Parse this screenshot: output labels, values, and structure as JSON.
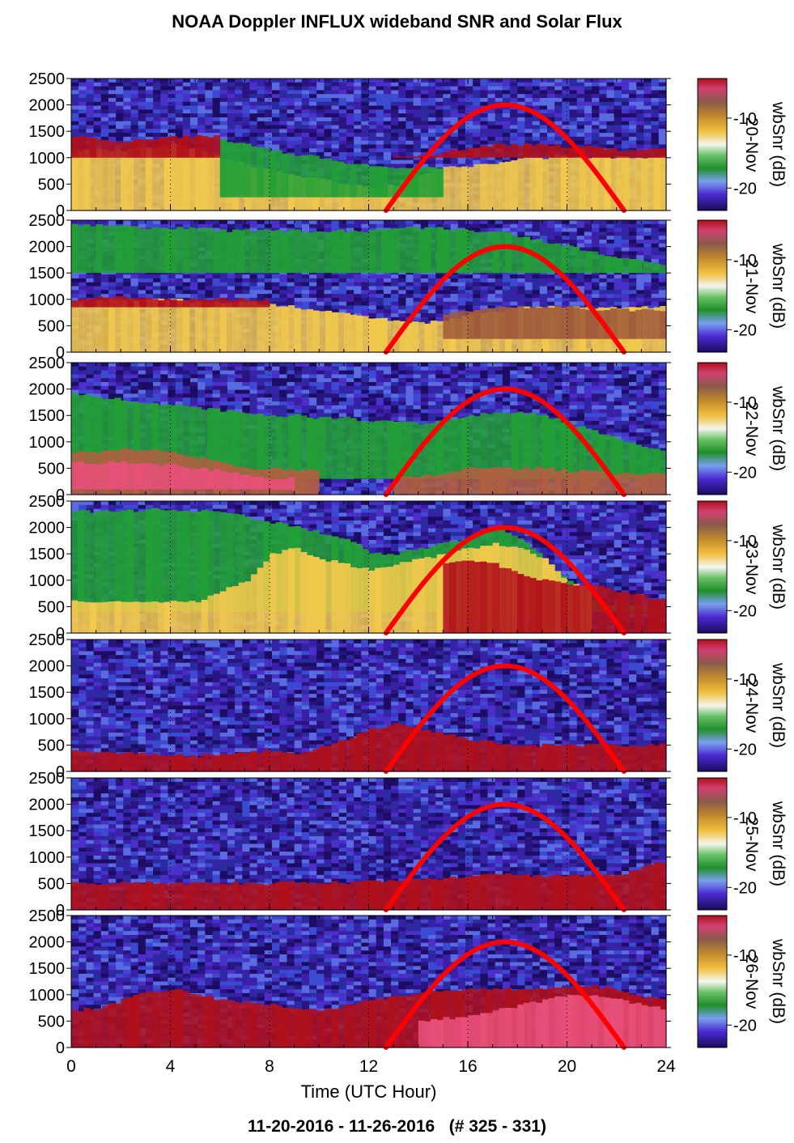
{
  "header": {
    "title": "NOAA Doppler INFLUX wideband SNR and Solar Flux"
  },
  "footer": {
    "range": "11-20-2016 - 11-26-2016   (# 325 - 331)"
  },
  "chart_data": {
    "type": "heatmap",
    "title": "NOAA Doppler INFLUX wideband SNR and Solar Flux",
    "xlabel": "Time (UTC Hour)",
    "ylabel": "",
    "xlim": [
      0,
      24
    ],
    "ylim": [
      0,
      2500
    ],
    "x_ticks": [
      "0",
      "4",
      "8",
      "12",
      "16",
      "20",
      "24"
    ],
    "y_ticks": [
      "0",
      "500",
      "1000",
      "1500",
      "2000",
      "2500"
    ],
    "colorbar": {
      "label": "wbSnr (dB)",
      "ticks": [
        "10",
        "20"
      ]
    },
    "solar_flux_curve": {
      "color": "#ff0000",
      "sunrise_hour": 12.7,
      "sunset_hour": 22.3,
      "peak_hour": 17.5,
      "peak_altitude": 2000
    },
    "panels": [
      {
        "day_label": "20-Nov",
        "layers": [
          {
            "color": "#f2c94c",
            "top": [
              1100,
              1150,
              1150,
              1180,
              1250,
              1150,
              1000,
              850,
              750,
              650,
              600,
              500,
              450,
              500,
              700,
              800,
              850,
              900,
              1000,
              1000,
              1050,
              1000,
              1000,
              1000,
              1050
            ],
            "base": 0
          },
          {
            "color": "#22a035",
            "top": [
              0,
              0,
              0,
              0,
              0,
              0,
              1350,
              1250,
              1150,
              1050,
              1000,
              900,
              850,
              800,
              800,
              0,
              0,
              0,
              0,
              0,
              0,
              0,
              0,
              0,
              0
            ],
            "base": 250
          },
          {
            "color": "#b0101a",
            "top": [
              1400,
              1350,
              1300,
              1350,
              1400,
              1400,
              0,
              0,
              0,
              0,
              0,
              0,
              0,
              1050,
              1050,
              1100,
              1200,
              1250,
              1250,
              1250,
              1200,
              1200,
              1150,
              1150,
              1150
            ],
            "base": 1000
          }
        ]
      },
      {
        "day_label": "21-Nov",
        "layers": [
          {
            "color": "#22a035",
            "top": [
              2400,
              2400,
              2400,
              2350,
              2350,
              2350,
              2300,
              2300,
              2300,
              2300,
              2300,
              2300,
              2300,
              2350,
              2350,
              2350,
              2300,
              2300,
              2200,
              2100,
              2000,
              1900,
              1800,
              1700,
              1600
            ],
            "base": 1500
          },
          {
            "color": "#f2c94c",
            "top": [
              950,
              1000,
              1000,
              1000,
              1000,
              950,
              950,
              950,
              900,
              850,
              800,
              750,
              650,
              600,
              550,
              600,
              700,
              750,
              850,
              850,
              850,
              850,
              850,
              850,
              850
            ],
            "base": 0
          },
          {
            "color": "#b0101a",
            "top": [
              1000,
              1050,
              1050,
              1000,
              1000,
              1000,
              1000,
              1000,
              0,
              0,
              0,
              0,
              0,
              0,
              0,
              0,
              0,
              0,
              0,
              0,
              0,
              0,
              0,
              0,
              0
            ],
            "base": 850
          },
          {
            "color": "#a05a3a",
            "top": [
              0,
              0,
              0,
              0,
              0,
              0,
              0,
              0,
              0,
              0,
              0,
              0,
              0,
              0,
              0,
              700,
              800,
              850,
              850,
              850,
              850,
              800,
              800,
              800,
              750
            ],
            "base": 250
          }
        ]
      },
      {
        "day_label": "22-Nov",
        "layers": [
          {
            "color": "#22a035",
            "top": [
              1900,
              1850,
              1800,
              1750,
              1700,
              1650,
              1600,
              1550,
              1500,
              1500,
              1450,
              1450,
              1400,
              1400,
              1350,
              1400,
              1500,
              1550,
              1550,
              1500,
              1350,
              1200,
              1050,
              900,
              800
            ],
            "base": 300
          },
          {
            "color": "#b06040",
            "top": [
              800,
              800,
              850,
              850,
              800,
              700,
              600,
              500,
              500,
              450,
              0,
              0,
              0,
              300,
              350,
              400,
              500,
              500,
              500,
              500,
              450,
              450,
              400,
              400,
              400
            ],
            "base": 0
          },
          {
            "color": "#e8507a",
            "top": [
              600,
              600,
              600,
              600,
              550,
              500,
              450,
              350,
              300,
              0,
              0,
              0,
              0,
              0,
              0,
              0,
              0,
              0,
              0,
              0,
              0,
              0,
              0,
              0,
              0
            ],
            "base": 100
          }
        ]
      },
      {
        "day_label": "23-Nov",
        "layers": [
          {
            "color": "#22a035",
            "top": [
              2300,
              2300,
              2300,
              2350,
              2350,
              2300,
              2300,
              2200,
              2100,
              2000,
              1900,
              1800,
              1500,
              1500,
              1600,
              1700,
              1800,
              2000,
              1800,
              1400,
              1000,
              600,
              500,
              500,
              400
            ],
            "base": 400
          },
          {
            "color": "#f2c94c",
            "top": [
              600,
              600,
              600,
              600,
              600,
              600,
              800,
              1000,
              1500,
              1600,
              1400,
              1300,
              1200,
              1300,
              1400,
              1500,
              1600,
              1700,
              1600,
              1400,
              900,
              0,
              0,
              0,
              0
            ],
            "base": 0
          },
          {
            "color": "#b0101a",
            "top": [
              0,
              0,
              0,
              0,
              0,
              0,
              0,
              0,
              0,
              0,
              0,
              0,
              0,
              0,
              0,
              1300,
              1400,
              1300,
              1100,
              1000,
              900,
              900,
              800,
              700,
              600
            ],
            "base": 0
          }
        ]
      },
      {
        "day_label": "24-Nov",
        "layers": [
          {
            "color": "#b0101a",
            "top": [
              400,
              380,
              350,
              320,
              300,
              300,
              320,
              350,
              400,
              350,
              450,
              600,
              800,
              900,
              800,
              700,
              600,
              550,
              500,
              500,
              500,
              500,
              500,
              500,
              500
            ],
            "base": 0
          }
        ]
      },
      {
        "day_label": "25-Nov",
        "layers": [
          {
            "color": "#b0101a",
            "top": [
              500,
              500,
              520,
              520,
              500,
              500,
              500,
              500,
              500,
              520,
              520,
              520,
              550,
              550,
              600,
              600,
              650,
              700,
              650,
              650,
              650,
              650,
              650,
              800,
              950
            ],
            "base": 0
          }
        ]
      },
      {
        "day_label": "26-Nov",
        "layers": [
          {
            "color": "#b0101a",
            "top": [
              700,
              750,
              900,
              1050,
              1100,
              1000,
              900,
              850,
              800,
              750,
              700,
              800,
              900,
              950,
              1050,
              1100,
              1100,
              1100,
              1100,
              1100,
              1150,
              1150,
              1100,
              950,
              900
            ],
            "base": 0
          },
          {
            "color": "#e8507a",
            "top": [
              0,
              0,
              0,
              0,
              0,
              0,
              0,
              0,
              0,
              0,
              0,
              0,
              0,
              0,
              500,
              550,
              600,
              700,
              800,
              900,
              1000,
              1000,
              900,
              800,
              700
            ],
            "base": 0
          }
        ]
      }
    ]
  }
}
